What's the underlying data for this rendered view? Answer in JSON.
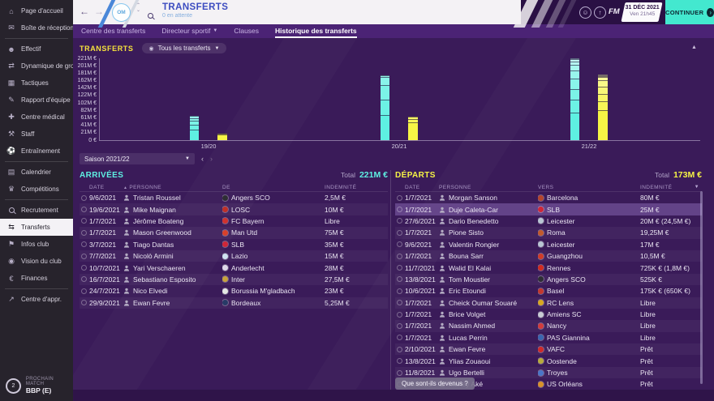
{
  "topbar": {
    "title": "TRANSFERTS",
    "subtitle": "0 en attente",
    "crest_label": "OM",
    "fm_label": "FM",
    "date_line1": "31 DÉC 2021",
    "date_line2": "Ven 21h45",
    "continue_label": "CONTINUER"
  },
  "tabs": [
    {
      "label": "Centre des transferts",
      "active": false,
      "dropdown": false
    },
    {
      "label": "Directeur sportif",
      "active": false,
      "dropdown": true
    },
    {
      "label": "Clauses",
      "active": false,
      "dropdown": false
    },
    {
      "label": "Historique des transferts",
      "active": true,
      "dropdown": false
    }
  ],
  "sidebar": {
    "items": [
      {
        "label": "Page d'accueil",
        "icon": "home"
      },
      {
        "label": "Boîte de réception",
        "icon": "inbox",
        "sep_after": true
      },
      {
        "label": "Effectif",
        "icon": "squad"
      },
      {
        "label": "Dynamique de grou...",
        "icon": "dynamics"
      },
      {
        "label": "Tactiques",
        "icon": "tactics"
      },
      {
        "label": "Rapport d'équipe",
        "icon": "report"
      },
      {
        "label": "Centre médical",
        "icon": "medical"
      },
      {
        "label": "Staff",
        "icon": "staff"
      },
      {
        "label": "Entraînement",
        "icon": "training",
        "sep_after": true
      },
      {
        "label": "Calendrier",
        "icon": "calendar"
      },
      {
        "label": "Compétitions",
        "icon": "competitions",
        "sep_after": true
      },
      {
        "label": "Recrutement",
        "icon": "scouting"
      },
      {
        "label": "Transferts",
        "icon": "transfers",
        "active": true
      },
      {
        "label": "Infos club",
        "icon": "club-info"
      },
      {
        "label": "Vision du club",
        "icon": "club-vision"
      },
      {
        "label": "Finances",
        "icon": "finances",
        "sep_after": true
      },
      {
        "label": "Centre d'appr.",
        "icon": "development"
      }
    ],
    "next_match_label": "PROCHAIN MATCH",
    "next_match_value": "BBP (E)",
    "next_match_badge": "2"
  },
  "chart_data": {
    "type": "bar",
    "title": "TRANSFERTS",
    "filter_label": "Tous les transferts",
    "categories": [
      "19/20",
      "20/21",
      "21/22"
    ],
    "y_ticks": [
      "221M €",
      "201M €",
      "181M €",
      "162M €",
      "142M €",
      "122M €",
      "102M €",
      "82M €",
      "61M €",
      "41M €",
      "21M €",
      "0 €"
    ],
    "ylim": [
      0,
      221.25
    ],
    "grid": false,
    "legend": "none",
    "series": [
      {
        "name": "Arrivées (indemnités payées)",
        "color": "#5ef0e2",
        "values": [
          65,
          175,
          221.25
        ],
        "segments": [
          [
            28,
            14,
            10,
            8,
            5
          ],
          [
            68,
            42,
            40,
            20,
            5
          ],
          [
            75,
            35,
            28,
            27.5,
            23,
            15,
            10,
            5.25,
            2.5
          ]
        ]
      },
      {
        "name": "Départs (indemnités reçues)",
        "color": "#f6f445",
        "values": [
          17.5,
          63.5,
          173.18
        ],
        "segments": [
          [
            15,
            2.5
          ],
          [
            48,
            9,
            6.5
          ],
          [
            80,
            25,
            20,
            19.25,
            17,
            10.5,
            0.725,
            0.525,
            0.175
          ]
        ]
      }
    ]
  },
  "season_selector": {
    "label": "Saison 2021/22"
  },
  "arrivals": {
    "title": "ARRIVÉES",
    "total_label": "Total",
    "total_value": "221M €",
    "sort_icon": "▲",
    "columns": {
      "date": "DATE",
      "person": "PERSONNE",
      "club": "DE",
      "fee": "INDEMNITÉ"
    },
    "rows": [
      {
        "date": "9/6/2021",
        "person": "Tristan Roussel",
        "club": "Angers SCO",
        "badge_color": "#2e2e34",
        "fee": "2,5M €"
      },
      {
        "date": "19/6/2021",
        "person": "Mike Maignan",
        "club": "LOSC",
        "badge_color": "#c03028",
        "fee": "10M €"
      },
      {
        "date": "1/7/2021",
        "person": "Jérôme Boateng",
        "club": "FC Bayern",
        "badge_color": "#d0322e",
        "fee": "Libre"
      },
      {
        "date": "1/7/2021",
        "person": "Mason Greenwood",
        "club": "Man Utd",
        "badge_color": "#d8402a",
        "fee": "75M €"
      },
      {
        "date": "3/7/2021",
        "person": "Tiago Dantas",
        "club": "SLB",
        "badge_color": "#cf2638",
        "fee": "35M €"
      },
      {
        "date": "7/7/2021",
        "person": "Nicolò Armini",
        "club": "Lazio",
        "badge_color": "#cfe2f0",
        "fee": "15M €"
      },
      {
        "date": "10/7/2021",
        "person": "Yari Verschaeren",
        "club": "Anderlecht",
        "badge_color": "#ded9e8",
        "fee": "28M €"
      },
      {
        "date": "16/7/2021",
        "person": "Sebastiano Esposito",
        "club": "Inter",
        "badge_color": "#c7a23c",
        "fee": "27,5M €"
      },
      {
        "date": "24/7/2021",
        "person": "Nico Elvedi",
        "club": "Borussia M'gladbach",
        "badge_color": "#e4e8e4",
        "fee": "23M €"
      },
      {
        "date": "29/9/2021",
        "person": "Ewan Fevre",
        "club": "Bordeaux",
        "badge_color": "#273a66",
        "fee": "5,25M €"
      }
    ]
  },
  "departures": {
    "title": "DÉPARTS",
    "total_label": "Total",
    "total_value": "173M €",
    "filter_icon": "▼",
    "columns": {
      "date": "DATE",
      "person": "PERSONNE",
      "club": "VERS",
      "fee": "INDEMNITÉ"
    },
    "rows": [
      {
        "date": "1/7/2021",
        "person": "Morgan Sanson",
        "club": "Barcelona",
        "badge_color": "#b5452c",
        "fee": "80M €"
      },
      {
        "date": "1/7/2021",
        "person": "Duje Caleta-Car",
        "club": "SLB",
        "badge_color": "#cf2638",
        "fee": "25M €",
        "highlight": true
      },
      {
        "date": "27/6/2021",
        "person": "Dario Benedetto",
        "club": "Leicester",
        "badge_color": "#b9c6d4",
        "fee": "20M € (24,5M €)"
      },
      {
        "date": "1/7/2021",
        "person": "Pione Sisto",
        "club": "Roma",
        "badge_color": "#c25a2c",
        "fee": "19,25M €"
      },
      {
        "date": "9/6/2021",
        "person": "Valentin Rongier",
        "club": "Leicester",
        "badge_color": "#b9c6d4",
        "fee": "17M €"
      },
      {
        "date": "1/7/2021",
        "person": "Bouna Sarr",
        "club": "Guangzhou",
        "badge_color": "#d03c28",
        "fee": "10,5M €"
      },
      {
        "date": "11/7/2021",
        "person": "Walid El Kalai",
        "club": "Rennes",
        "badge_color": "#d12b20",
        "fee": "725K € (1,8M €)"
      },
      {
        "date": "13/8/2021",
        "person": "Tom Moustier",
        "club": "Angers SCO",
        "badge_color": "#2e2e34",
        "fee": "525K €"
      },
      {
        "date": "10/6/2021",
        "person": "Eric Etoundi",
        "club": "Basel",
        "badge_color": "#c3382e",
        "fee": "175K € (650K €)"
      },
      {
        "date": "1/7/2021",
        "person": "Cheick Oumar Souaré",
        "club": "RC Lens",
        "badge_color": "#d8a821",
        "fee": "Libre"
      },
      {
        "date": "1/7/2021",
        "person": "Brice Volget",
        "club": "Amiens SC",
        "badge_color": "#c8ccd4",
        "fee": "Libre"
      },
      {
        "date": "1/7/2021",
        "person": "Nassim Ahmed",
        "club": "Nancy",
        "badge_color": "#d23c3c",
        "fee": "Libre"
      },
      {
        "date": "1/7/2021",
        "person": "Lucas Perrin",
        "club": "PAS Giannina",
        "badge_color": "#3a66b0",
        "fee": "Libre"
      },
      {
        "date": "2/10/2021",
        "person": "Ewan Fevre",
        "club": "VAFC",
        "badge_color": "#d02a2a",
        "fee": "Prêt"
      },
      {
        "date": "13/8/2021",
        "person": "Ylias Zouaoui",
        "club": "Oostende",
        "badge_color": "#b8ab3c",
        "fee": "Prêt"
      },
      {
        "date": "11/8/2021",
        "person": "Ugo Bertelli",
        "club": "Troyes",
        "badge_color": "#4a76c8",
        "fee": "Prêt"
      },
      {
        "date": "8/8/2021",
        "person": "Marley Aké",
        "club": "US Orléans",
        "badge_color": "#d8922a",
        "fee": "Prêt"
      }
    ],
    "footer_button": "Que sont-ils devenus ?"
  },
  "colors": {
    "accent_cyan": "#5ef0e2",
    "accent_yellow": "#f6f445",
    "continue_teal": "#43e8cf"
  }
}
